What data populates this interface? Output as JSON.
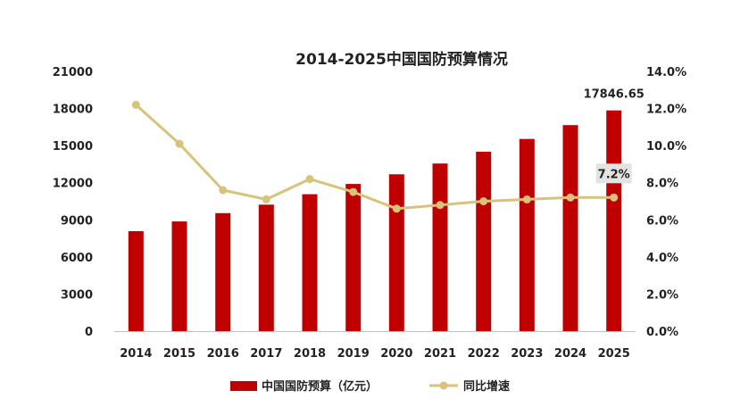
{
  "chart_data": {
    "type": "bar",
    "title": "2014-2025中国国防预算情况",
    "categories": [
      "2014",
      "2015",
      "2016",
      "2017",
      "2018",
      "2019",
      "2020",
      "2021",
      "2022",
      "2023",
      "2024",
      "2025"
    ],
    "series": [
      {
        "name": "中国国防预算（亿元）",
        "type": "bar",
        "axis": "left",
        "color": "#c00000",
        "values": [
          8082,
          8869,
          9543,
          10226,
          11070,
          11899,
          12680,
          13553,
          14505,
          15537,
          16655,
          17846.65
        ]
      },
      {
        "name": "同比增速",
        "type": "line",
        "axis": "right",
        "color": "#d9c27a",
        "values": [
          12.2,
          10.1,
          7.6,
          7.1,
          8.2,
          7.5,
          6.6,
          6.8,
          7.0,
          7.1,
          7.2,
          7.2
        ]
      }
    ],
    "y_left": {
      "ylim": [
        0,
        21000
      ],
      "ticks": [
        "0",
        "3000",
        "6000",
        "9000",
        "12000",
        "15000",
        "18000",
        "21000"
      ]
    },
    "y_right": {
      "ylim": [
        0,
        14
      ],
      "ticks": [
        "0.0%",
        "2.0%",
        "4.0%",
        "6.0%",
        "8.0%",
        "10.0%",
        "12.0%",
        "14.0%"
      ]
    },
    "annotations": [
      {
        "text": "17846.65",
        "target": "bar",
        "index": 11
      },
      {
        "text": "7.2%",
        "target": "line",
        "index": 11,
        "boxed": true
      }
    ],
    "grid": false,
    "legend_position": "bottom"
  }
}
